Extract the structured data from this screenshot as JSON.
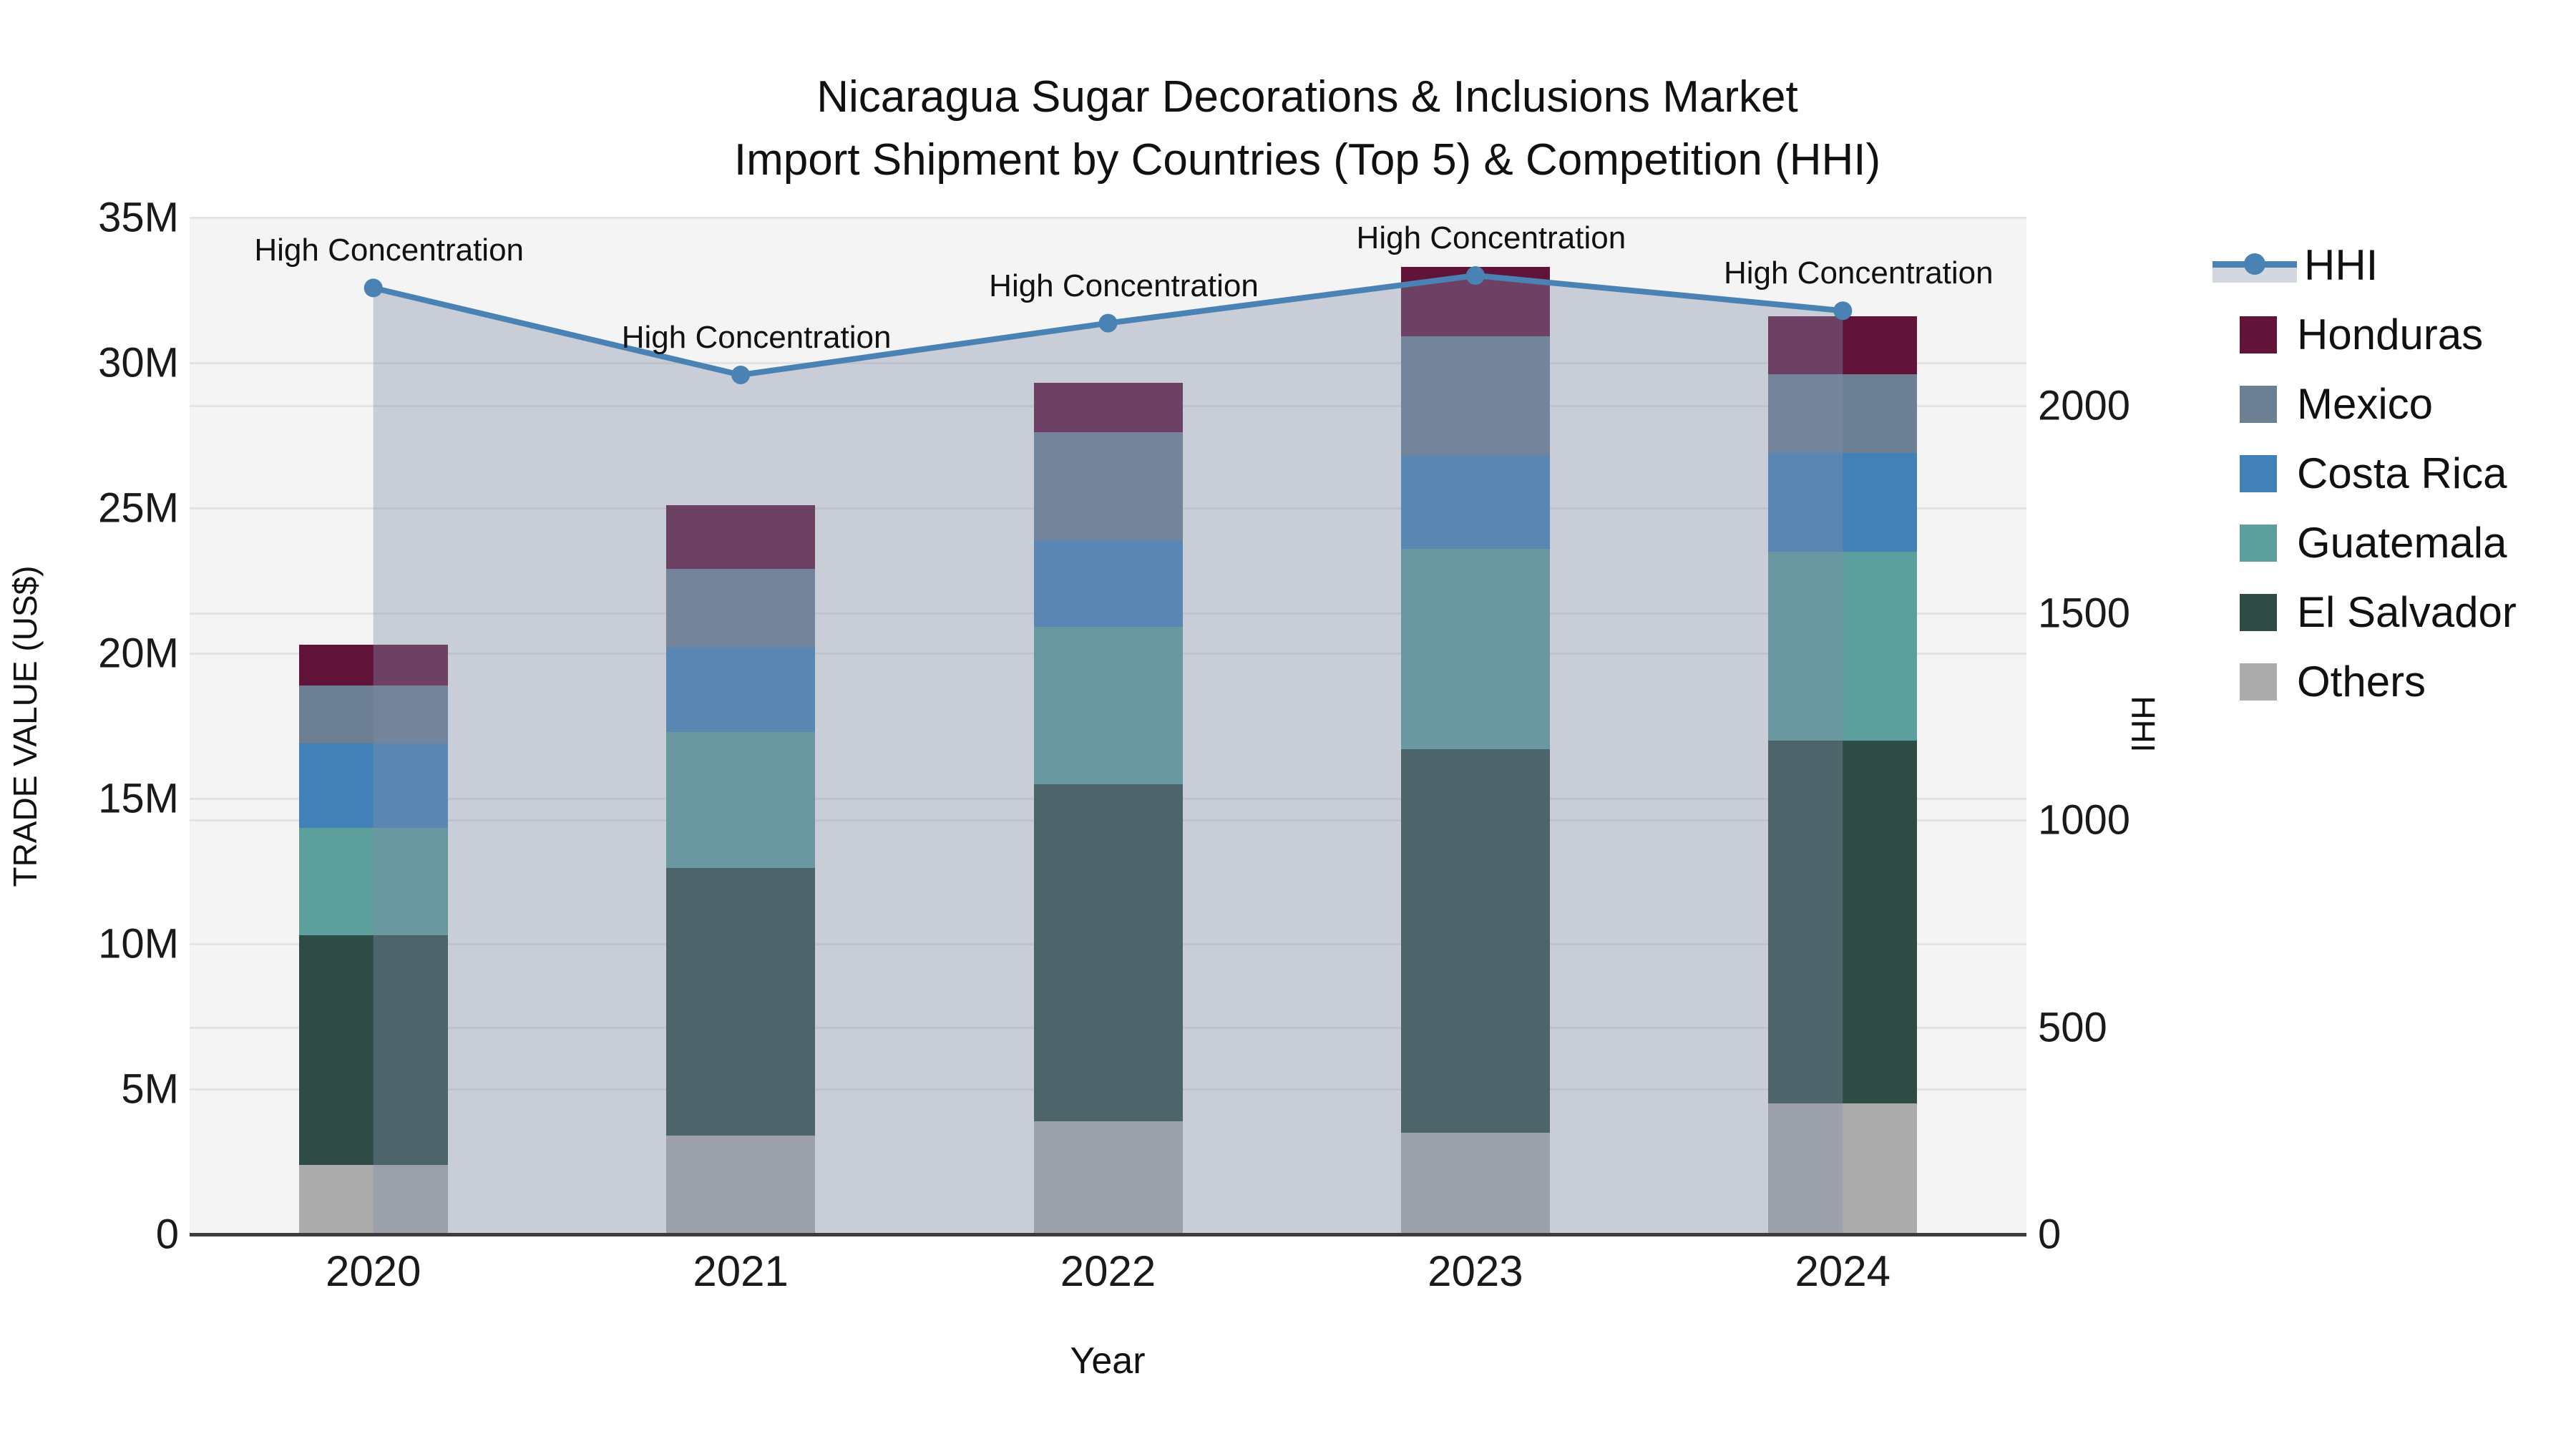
{
  "title": {
    "line1": "Nicaragua Sugar Decorations & Inclusions Market",
    "line2": "Import Shipment by Countries (Top 5) & Competition (HHI)"
  },
  "axes": {
    "left_title": "TRADE VALUE (US$)",
    "right_title": "HHI",
    "x_title": "Year"
  },
  "annotation_label": "High Concentration",
  "legend": [
    {
      "name": "HHI",
      "type": "line",
      "color": "#4a82b4"
    },
    {
      "name": "Honduras",
      "type": "swatch",
      "color": "#621339"
    },
    {
      "name": "Mexico",
      "type": "swatch",
      "color": "#6d7f93"
    },
    {
      "name": "Costa Rica",
      "type": "swatch",
      "color": "#4281b8"
    },
    {
      "name": "Guatemala",
      "type": "swatch",
      "color": "#5d9f9d"
    },
    {
      "name": "El Salvador",
      "type": "swatch",
      "color": "#2e4b46"
    },
    {
      "name": "Others",
      "type": "swatch",
      "color": "#ababab"
    }
  ],
  "colors": {
    "hhi_line": "#4a82b4",
    "hhi_area_fill": "rgba(130,143,169,0.38)",
    "plot_background": "#f4f4f4",
    "gridline": "#e3e3e3",
    "axis_line": "#3c3c3c"
  },
  "chart_data": {
    "type": "combo (stacked bar + line)",
    "title": "Nicaragua Sugar Decorations & Inclusions Market — Import Shipment by Countries (Top 5) & Competition (HHI)",
    "categories": [
      "2020",
      "2021",
      "2022",
      "2023",
      "2024"
    ],
    "bar_unit": "million US$",
    "bar_series_bottom_to_top": [
      {
        "name": "Others",
        "color": "#ababab",
        "values": [
          2.4,
          3.4,
          3.9,
          3.5,
          4.5
        ]
      },
      {
        "name": "El Salvador",
        "color": "#2e4b46",
        "values": [
          7.9,
          9.2,
          11.6,
          13.2,
          12.5
        ]
      },
      {
        "name": "Guatemala",
        "color": "#5d9f9d",
        "values": [
          3.7,
          4.7,
          5.4,
          6.9,
          6.5
        ]
      },
      {
        "name": "Costa Rica",
        "color": "#4281b8",
        "values": [
          2.9,
          2.9,
          3.0,
          3.2,
          3.4
        ]
      },
      {
        "name": "Mexico",
        "color": "#6d7f93",
        "values": [
          2.0,
          2.7,
          3.7,
          4.1,
          2.7
        ]
      },
      {
        "name": "Honduras",
        "color": "#621339",
        "values": [
          1.4,
          2.2,
          1.7,
          2.4,
          2.0
        ]
      }
    ],
    "bar_totals": [
      20.3,
      25.1,
      29.3,
      33.3,
      31.6
    ],
    "line_series": {
      "name": "HHI",
      "axis": "right",
      "color": "#4a82b4",
      "values": [
        2285,
        2075,
        2200,
        2315,
        2230
      ],
      "area_fill": true
    },
    "annotations": [
      "High Concentration",
      "High Concentration",
      "High Concentration",
      "High Concentration",
      "High Concentration"
    ],
    "left_axis": {
      "label": "TRADE VALUE (US$)",
      "min": 0,
      "max": 35,
      "tick_step": 5,
      "tick_labels": [
        "0",
        "5M",
        "10M",
        "15M",
        "20M",
        "25M",
        "30M",
        "35M"
      ]
    },
    "right_axis": {
      "label": "HHI",
      "min": 0,
      "max": 2455,
      "tick_step": 500,
      "tick_labels": [
        "0",
        "500",
        "1000",
        "1500",
        "2000"
      ]
    },
    "x_axis": {
      "label": "Year"
    },
    "grid": true,
    "legend_position": "right"
  }
}
